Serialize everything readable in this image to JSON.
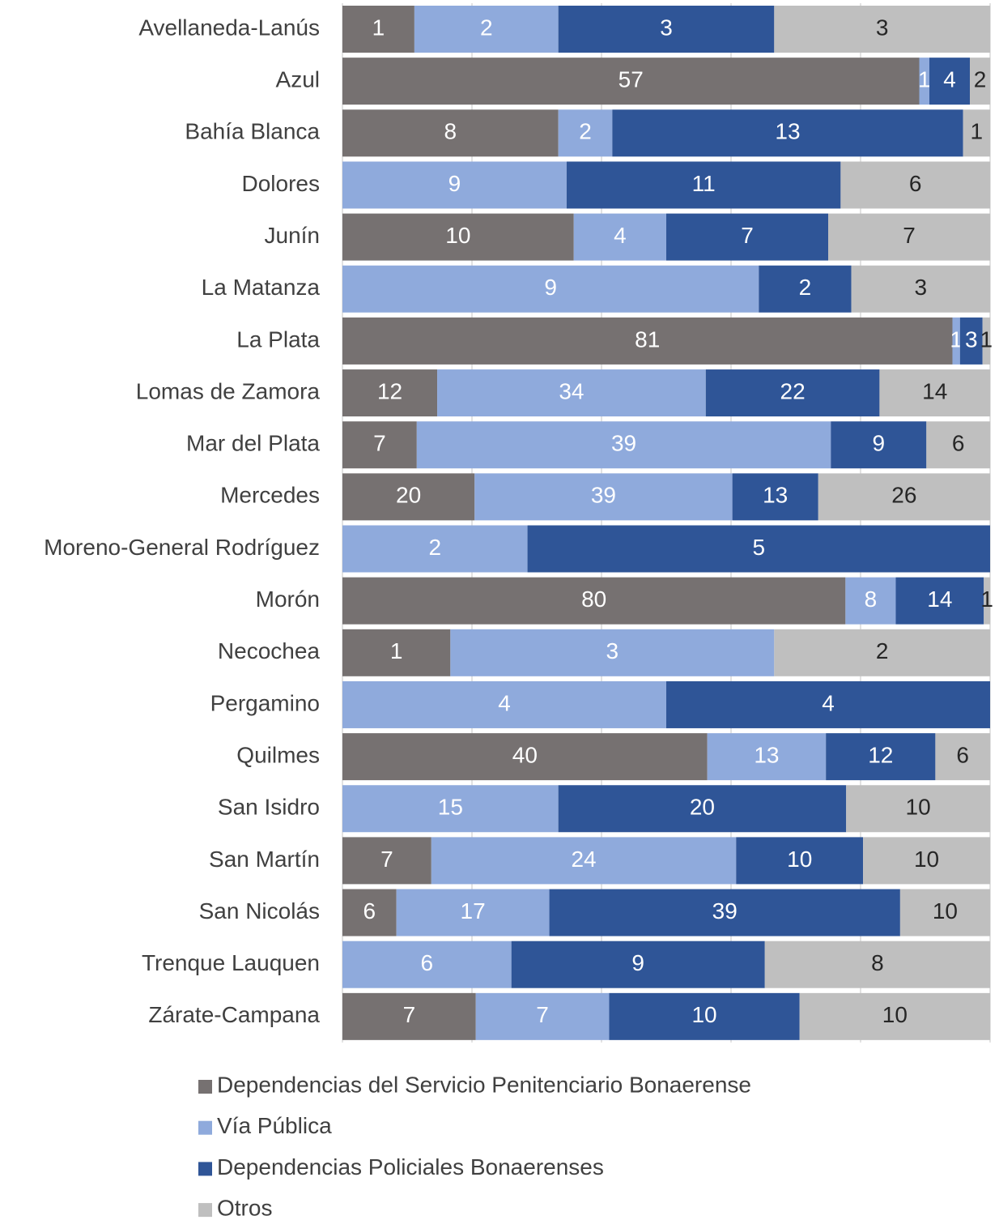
{
  "chart_data": {
    "type": "bar",
    "orientation": "horizontal",
    "stacking": "percent",
    "categories": [
      "Avellaneda-Lanús",
      "Azul",
      "Bahía Blanca",
      "Dolores",
      "Junín",
      "La Matanza",
      "La Plata",
      "Lomas de Zamora",
      "Mar del Plata",
      "Mercedes",
      "Moreno-General Rodríguez",
      "Morón",
      "Necochea",
      "Pergamino",
      "Quilmes",
      "San Isidro",
      "San Martín",
      "San Nicolás",
      "Trenque Lauquen",
      "Zárate-Campana"
    ],
    "series": [
      {
        "name": "Dependencias del Servicio Penitenciario Bonaerense",
        "color": "#767171",
        "label_color": "#ffffff",
        "values": [
          1,
          57,
          8,
          null,
          10,
          null,
          81,
          12,
          7,
          20,
          null,
          80,
          1,
          null,
          40,
          null,
          7,
          6,
          null,
          7
        ]
      },
      {
        "name": "Vía Pública",
        "color": "#8faadc",
        "label_color": "#ffffff",
        "values": [
          2,
          1,
          2,
          9,
          4,
          9,
          1,
          34,
          39,
          39,
          2,
          8,
          3,
          4,
          13,
          15,
          24,
          17,
          6,
          7
        ]
      },
      {
        "name": "Dependencias Policiales Bonaerenses",
        "color": "#2f5597",
        "label_color": "#ffffff",
        "values": [
          3,
          4,
          13,
          11,
          7,
          2,
          3,
          22,
          9,
          13,
          5,
          14,
          null,
          4,
          12,
          20,
          10,
          39,
          9,
          10
        ]
      },
      {
        "name": "Otros",
        "color": "#bfbfbf",
        "label_color": "#262626",
        "values": [
          3,
          2,
          1,
          6,
          7,
          3,
          1,
          14,
          6,
          26,
          null,
          1,
          2,
          null,
          6,
          10,
          10,
          10,
          8,
          10
        ]
      }
    ],
    "xlim": [
      0,
      100
    ],
    "xticks": [
      0,
      20,
      40,
      60,
      80,
      100
    ],
    "grid": true,
    "legend": "bottom"
  }
}
